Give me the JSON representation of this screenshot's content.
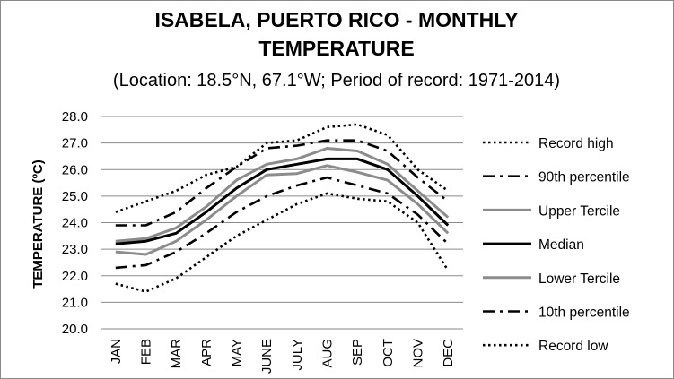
{
  "chart_data": {
    "type": "line",
    "title_line1": "ISABELA, PUERTO RICO - MONTHLY",
    "title_line2": "TEMPERATURE",
    "subtitle": "(Location: 18.5°N, 67.1°W; Period of record: 1971-2014)",
    "ylabel": "TEMPERATURE (ºC)",
    "xlabel": "",
    "ylim": [
      20.0,
      28.0
    ],
    "y_ticks": [
      "20.0",
      "21.0",
      "22.0",
      "23.0",
      "24.0",
      "25.0",
      "26.0",
      "27.0",
      "28.0"
    ],
    "categories": [
      "JAN",
      "FEB",
      "MAR",
      "APR",
      "MAY",
      "JUNE",
      "JULY",
      "AUG",
      "SEP",
      "OCT",
      "NOV",
      "DEC"
    ],
    "grid": "horizontal",
    "legend_position": "right",
    "series": [
      {
        "name": "Record high",
        "style": "dotted",
        "color": "#000000",
        "values": [
          24.4,
          24.8,
          25.2,
          25.8,
          26.1,
          27.0,
          27.1,
          27.6,
          27.7,
          27.3,
          26.0,
          25.2
        ]
      },
      {
        "name": "90th percentile",
        "style": "dashdot",
        "color": "#000000",
        "values": [
          23.9,
          23.9,
          24.4,
          25.3,
          26.1,
          26.8,
          26.9,
          27.1,
          27.1,
          26.7,
          25.7,
          24.8
        ]
      },
      {
        "name": "Upper Tercile",
        "style": "solid",
        "color": "#8c8c8c",
        "values": [
          23.3,
          23.4,
          23.8,
          24.6,
          25.6,
          26.2,
          26.4,
          26.8,
          26.7,
          26.2,
          25.2,
          24.2
        ]
      },
      {
        "name": "Median",
        "style": "solid",
        "color": "#000000",
        "values": [
          23.2,
          23.3,
          23.6,
          24.4,
          25.3,
          26.0,
          26.2,
          26.4,
          26.4,
          26.0,
          25.0,
          23.9
        ]
      },
      {
        "name": "Lower Tercile",
        "style": "solid",
        "color": "#8c8c8c",
        "values": [
          22.9,
          22.8,
          23.3,
          24.1,
          25.0,
          25.8,
          25.85,
          26.15,
          25.9,
          25.6,
          24.7,
          23.6
        ]
      },
      {
        "name": "10th percentile",
        "style": "dashdot",
        "color": "#000000",
        "values": [
          22.3,
          22.4,
          22.9,
          23.6,
          24.4,
          25.0,
          25.4,
          25.7,
          25.4,
          25.1,
          24.3,
          23.2
        ]
      },
      {
        "name": "Record low",
        "style": "dotted",
        "color": "#000000",
        "values": [
          21.7,
          21.4,
          21.9,
          22.7,
          23.5,
          24.1,
          24.7,
          25.1,
          24.9,
          24.8,
          24.0,
          22.2
        ]
      }
    ]
  }
}
